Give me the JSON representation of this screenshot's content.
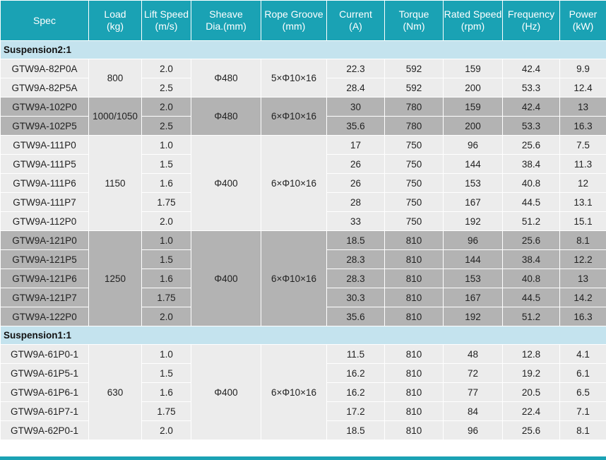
{
  "headers": [
    [
      "Spec"
    ],
    [
      "Load",
      "(kg)"
    ],
    [
      "Lift Speed",
      "(m/s)"
    ],
    [
      "Sheave",
      "Dia.(mm)"
    ],
    [
      "Rope Groove",
      "(mm)"
    ],
    [
      "Current",
      "(A)"
    ],
    [
      "Torque",
      "(Nm)"
    ],
    [
      "Rated Speed",
      "(rpm)"
    ],
    [
      "Frequency",
      "(Hz)"
    ],
    [
      "Power",
      "(kW)"
    ]
  ],
  "sections": [
    {
      "title": "Suspension2:1",
      "groups": [
        {
          "shade": "light",
          "load": "800",
          "sheave": "Φ480",
          "groove": "5×Φ10×16",
          "rows": [
            {
              "spec": "GTW9A-82P0A",
              "speed": "2.0",
              "current": "22.3",
              "torque": "592",
              "rpm": "159",
              "freq": "42.4",
              "power": "9.9"
            },
            {
              "spec": "GTW9A-82P5A",
              "speed": "2.5",
              "current": "28.4",
              "torque": "592",
              "rpm": "200",
              "freq": "53.3",
              "power": "12.4"
            }
          ]
        },
        {
          "shade": "dark",
          "load": "1000/1050",
          "sheave": "Φ480",
          "groove": "6×Φ10×16",
          "rows": [
            {
              "spec": "GTW9A-102P0",
              "speed": "2.0",
              "current": "30",
              "torque": "780",
              "rpm": "159",
              "freq": "42.4",
              "power": "13"
            },
            {
              "spec": "GTW9A-102P5",
              "speed": "2.5",
              "current": "35.6",
              "torque": "780",
              "rpm": "200",
              "freq": "53.3",
              "power": "16.3"
            }
          ]
        },
        {
          "shade": "light",
          "load": "1150",
          "sheave": "Φ400",
          "groove": "6×Φ10×16",
          "rows": [
            {
              "spec": "GTW9A-111P0",
              "speed": "1.0",
              "current": "17",
              "torque": "750",
              "rpm": "96",
              "freq": "25.6",
              "power": "7.5"
            },
            {
              "spec": "GTW9A-111P5",
              "speed": "1.5",
              "current": "26",
              "torque": "750",
              "rpm": "144",
              "freq": "38.4",
              "power": "11.3"
            },
            {
              "spec": "GTW9A-111P6",
              "speed": "1.6",
              "current": "26",
              "torque": "750",
              "rpm": "153",
              "freq": "40.8",
              "power": "12"
            },
            {
              "spec": "GTW9A-111P7",
              "speed": "1.75",
              "current": "28",
              "torque": "750",
              "rpm": "167",
              "freq": "44.5",
              "power": "13.1"
            },
            {
              "spec": "GTW9A-112P0",
              "speed": "2.0",
              "current": "33",
              "torque": "750",
              "rpm": "192",
              "freq": "51.2",
              "power": "15.1"
            }
          ]
        },
        {
          "shade": "dark",
          "load": "1250",
          "sheave": "Φ400",
          "groove": "6×Φ10×16",
          "rows": [
            {
              "spec": "GTW9A-121P0",
              "speed": "1.0",
              "current": "18.5",
              "torque": "810",
              "rpm": "96",
              "freq": "25.6",
              "power": "8.1"
            },
            {
              "spec": "GTW9A-121P5",
              "speed": "1.5",
              "current": "28.3",
              "torque": "810",
              "rpm": "144",
              "freq": "38.4",
              "power": "12.2"
            },
            {
              "spec": "GTW9A-121P6",
              "speed": "1.6",
              "current": "28.3",
              "torque": "810",
              "rpm": "153",
              "freq": "40.8",
              "power": "13"
            },
            {
              "spec": "GTW9A-121P7",
              "speed": "1.75",
              "current": "30.3",
              "torque": "810",
              "rpm": "167",
              "freq": "44.5",
              "power": "14.2"
            },
            {
              "spec": "GTW9A-122P0",
              "speed": "2.0",
              "current": "35.6",
              "torque": "810",
              "rpm": "192",
              "freq": "51.2",
              "power": "16.3"
            }
          ]
        }
      ]
    },
    {
      "title": "Suspension1:1",
      "groups": [
        {
          "shade": "light",
          "load": "630",
          "sheave": "Φ400",
          "groove": "6×Φ10×16",
          "rows": [
            {
              "spec": "GTW9A-61P0-1",
              "speed": "1.0",
              "current": "11.5",
              "torque": "810",
              "rpm": "48",
              "freq": "12.8",
              "power": "4.1"
            },
            {
              "spec": "GTW9A-61P5-1",
              "speed": "1.5",
              "current": "16.2",
              "torque": "810",
              "rpm": "72",
              "freq": "19.2",
              "power": "6.1"
            },
            {
              "spec": "GTW9A-61P6-1",
              "speed": "1.6",
              "current": "16.2",
              "torque": "810",
              "rpm": "77",
              "freq": "20.5",
              "power": "6.5"
            },
            {
              "spec": "GTW9A-61P7-1",
              "speed": "1.75",
              "current": "17.2",
              "torque": "810",
              "rpm": "84",
              "freq": "22.4",
              "power": "7.1"
            },
            {
              "spec": "GTW9A-62P0-1",
              "speed": "2.0",
              "current": "18.5",
              "torque": "810",
              "rpm": "96",
              "freq": "25.6",
              "power": "8.1"
            }
          ]
        }
      ]
    }
  ]
}
